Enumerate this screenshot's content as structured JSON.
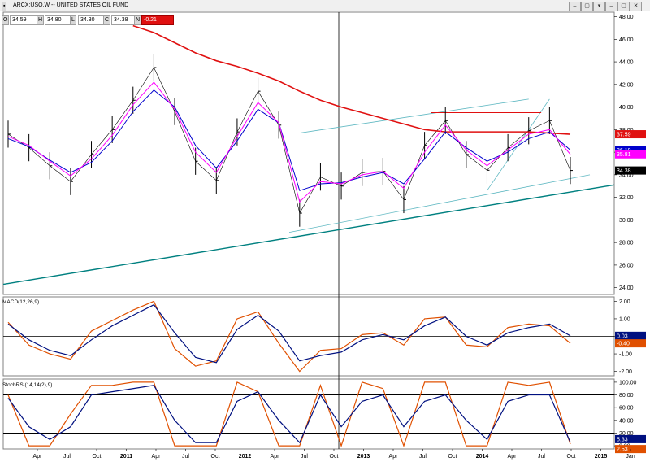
{
  "header": {
    "title": "ARCX:USO,W -- UNITED STATES OIL FUND",
    "ohlc": [
      {
        "label": "O",
        "value": "34.59"
      },
      {
        "label": "H",
        "value": "34.80"
      },
      {
        "label": "L",
        "value": "34.30"
      },
      {
        "label": "C",
        "value": "34.38"
      },
      {
        "label": "N",
        "value": "-0.21"
      }
    ]
  },
  "colors": {
    "price": "#000000",
    "sma_long": "#e01010",
    "ema_fast": "#ff00ff",
    "ema_slow": "#0000cc",
    "trend_long": "#008080",
    "channel": "#5fb8c2",
    "macd_line": "#e05000",
    "macd_signal": "#001080",
    "stoch_line": "#e05000",
    "stoch_signal": "#001080"
  },
  "chart_data": [
    {
      "type": "line",
      "panel": "price",
      "ylim": [
        23.4,
        48.4
      ],
      "yticks": [
        "24.00",
        "26.00",
        "28.00",
        "30.00",
        "32.00",
        "34.00",
        "36.00",
        "38.00",
        "40.00",
        "42.00",
        "44.00",
        "46.00",
        "48.00"
      ],
      "x": [
        "2010-03",
        "2010-05",
        "2010-07",
        "2010-09",
        "2010-11",
        "2011-01",
        "2011-03",
        "2011-05",
        "2011-07",
        "2011-09",
        "2011-11",
        "2012-01",
        "2012-03",
        "2012-05",
        "2012-07",
        "2012-09",
        "2012-11",
        "2013-01",
        "2013-03",
        "2013-05",
        "2013-07",
        "2013-09",
        "2013-11",
        "2014-01",
        "2014-03",
        "2014-05",
        "2014-07",
        "2014-08"
      ],
      "series": [
        {
          "role": "price",
          "values": [
            37.6,
            36.4,
            34.8,
            33.4,
            35.8,
            38.0,
            40.6,
            43.5,
            39.6,
            35.2,
            33.5,
            37.8,
            41.4,
            38.4,
            30.6,
            33.8,
            33.0,
            34.2,
            34.3,
            31.8,
            36.6,
            38.8,
            35.8,
            34.4,
            36.4,
            37.9,
            38.8,
            34.38
          ]
        },
        {
          "role": "sma_long",
          "values": [
            null,
            null,
            null,
            null,
            null,
            null,
            47.2,
            46.6,
            45.7,
            44.8,
            44.1,
            43.6,
            43.0,
            42.3,
            41.4,
            40.6,
            40.0,
            39.5,
            39.0,
            38.5,
            38.0,
            37.8,
            37.8,
            37.8,
            37.8,
            37.8,
            37.7,
            37.59
          ]
        },
        {
          "role": "ema_fast",
          "values": [
            37.4,
            36.6,
            35.2,
            33.9,
            35.4,
            37.5,
            40.2,
            42.2,
            39.8,
            36.0,
            34.2,
            37.4,
            40.4,
            38.6,
            31.6,
            33.4,
            33.2,
            34.0,
            34.3,
            32.8,
            36.0,
            38.4,
            36.2,
            34.8,
            36.2,
            37.6,
            38.0,
            35.81
          ]
        },
        {
          "role": "ema_slow",
          "values": [
            37.2,
            36.5,
            35.3,
            34.2,
            35.1,
            37.0,
            39.6,
            41.5,
            40.0,
            36.6,
            34.6,
            37.0,
            39.8,
            38.6,
            32.6,
            33.2,
            33.3,
            33.8,
            34.2,
            33.2,
            35.4,
            37.8,
            36.4,
            35.2,
            36.0,
            37.2,
            37.8,
            36.19
          ]
        }
      ],
      "labels": {
        "last": "34.38",
        "sma_long": "37.59",
        "ema_slow": "36.19",
        "ema_fast": "35.81"
      }
    },
    {
      "type": "line",
      "panel": "macd",
      "title": "MACD(12,26,9)",
      "ylim": [
        -2.25,
        2.25
      ],
      "yticks": [
        "-2.00",
        "-1.00",
        "0.00",
        "1.00",
        "2.00"
      ],
      "series": [
        {
          "role": "macd_line",
          "values": [
            0.8,
            -0.5,
            -1.0,
            -1.3,
            0.3,
            0.9,
            1.5,
            2.0,
            -0.7,
            -1.7,
            -1.4,
            1.0,
            1.4,
            -0.4,
            -2.0,
            -0.8,
            -0.7,
            0.1,
            0.2,
            -0.5,
            1.0,
            1.1,
            -0.5,
            -0.6,
            0.5,
            0.7,
            0.6,
            -0.4
          ]
        },
        {
          "role": "macd_signal",
          "values": [
            0.7,
            -0.2,
            -0.8,
            -1.1,
            -0.2,
            0.6,
            1.2,
            1.8,
            0.2,
            -1.2,
            -1.5,
            0.4,
            1.2,
            0.3,
            -1.4,
            -1.1,
            -0.9,
            -0.2,
            0.1,
            -0.2,
            0.6,
            1.1,
            0.0,
            -0.5,
            0.2,
            0.5,
            0.7,
            0.03
          ]
        }
      ],
      "labels": {
        "signal": "0.03",
        "macd": "-0.40"
      }
    },
    {
      "type": "line",
      "panel": "stochrsi",
      "title": "StochRSI(14,14(2),9)",
      "ylim": [
        -5,
        105
      ],
      "yticks": [
        "0.00",
        "20.00",
        "40.00",
        "60.00",
        "80.00",
        "100.00"
      ],
      "series": [
        {
          "role": "stoch_line",
          "values": [
            80,
            0,
            0,
            50,
            95,
            95,
            100,
            100,
            0,
            0,
            0,
            100,
            85,
            0,
            0,
            95,
            0,
            100,
            90,
            0,
            100,
            100,
            0,
            0,
            100,
            95,
            100,
            2.53
          ]
        },
        {
          "role": "stoch_signal",
          "values": [
            75,
            30,
            10,
            30,
            80,
            85,
            90,
            95,
            40,
            5,
            5,
            70,
            85,
            40,
            5,
            80,
            30,
            70,
            80,
            30,
            70,
            80,
            40,
            10,
            70,
            80,
            80,
            5.33
          ]
        }
      ],
      "labels": {
        "signal": "5.33",
        "line": "2.53"
      }
    }
  ],
  "time_axis": {
    "ticks": [
      "Apr",
      "Jul",
      "Oct",
      "2011",
      "Apr",
      "Jul",
      "Oct",
      "2012",
      "Apr",
      "Jul",
      "Oct",
      "2013",
      "Apr",
      "Jul",
      "Oct",
      "2014",
      "Apr",
      "Jul",
      "Oct",
      "2015",
      "Jan"
    ]
  }
}
